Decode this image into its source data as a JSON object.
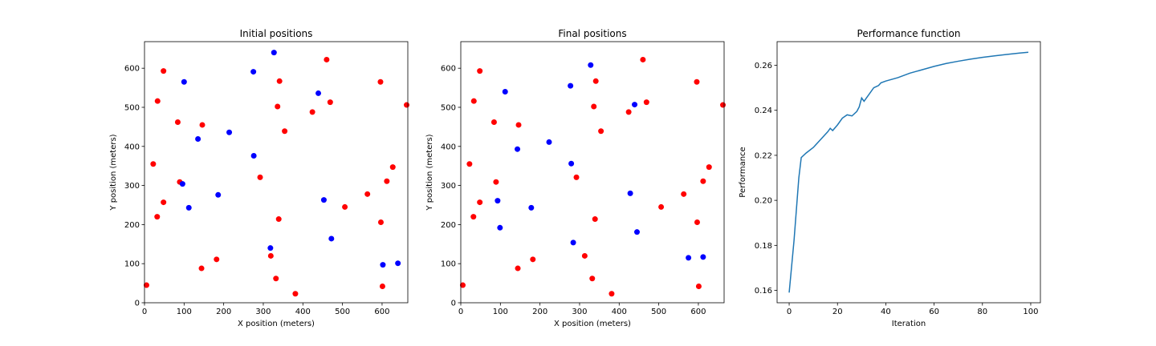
{
  "chart_data": [
    {
      "type": "scatter",
      "title": "Initial positions",
      "xlabel": "X position (meters)",
      "ylabel": "Y position (meters)",
      "xlim": [
        0,
        665
      ],
      "ylim": [
        0,
        668
      ],
      "xticks": [
        0,
        100,
        200,
        300,
        400,
        500,
        600
      ],
      "yticks": [
        0,
        100,
        200,
        300,
        400,
        500,
        600
      ],
      "grid": false,
      "series": [
        {
          "color": "#ff0000",
          "points": [
            [
              5,
              45
            ],
            [
              22,
              355
            ],
            [
              32,
              220
            ],
            [
              33,
              516
            ],
            [
              48,
              593
            ],
            [
              48,
              257
            ],
            [
              84,
              462
            ],
            [
              89,
              309
            ],
            [
              146,
              455
            ],
            [
              144,
              88
            ],
            [
              182,
              111
            ],
            [
              292,
              321
            ],
            [
              319,
              120
            ],
            [
              332,
              62
            ],
            [
              336,
              502
            ],
            [
              339,
              214
            ],
            [
              341,
              567
            ],
            [
              354,
              439
            ],
            [
              381,
              23
            ],
            [
              424,
              488
            ],
            [
              460,
              622
            ],
            [
              469,
              513
            ],
            [
              506,
              245
            ],
            [
              563,
              278
            ],
            [
              596,
              565
            ],
            [
              597,
              206
            ],
            [
              601,
              42
            ],
            [
              612,
              311
            ],
            [
              627,
              347
            ],
            [
              662,
              506
            ]
          ]
        },
        {
          "color": "#0000ff",
          "points": [
            [
              96,
              304
            ],
            [
              100,
              565
            ],
            [
              112,
              243
            ],
            [
              135,
              419
            ],
            [
              186,
              276
            ],
            [
              214,
              436
            ],
            [
              275,
              591
            ],
            [
              276,
              376
            ],
            [
              318,
              140
            ],
            [
              327,
              640
            ],
            [
              439,
              536
            ],
            [
              453,
              263
            ],
            [
              472,
              164
            ],
            [
              602,
              97
            ],
            [
              640,
              101
            ]
          ]
        }
      ]
    },
    {
      "type": "scatter",
      "title": "Final positions",
      "xlabel": "X position (meters)",
      "ylabel": "Y position (meters)",
      "xlim": [
        0,
        665
      ],
      "ylim": [
        0,
        668
      ],
      "xticks": [
        0,
        100,
        200,
        300,
        400,
        500,
        600
      ],
      "yticks": [
        0,
        100,
        200,
        300,
        400,
        500,
        600
      ],
      "grid": false,
      "series": [
        {
          "color": "#ff0000",
          "points": [
            [
              5,
              45
            ],
            [
              22,
              355
            ],
            [
              32,
              220
            ],
            [
              33,
              516
            ],
            [
              48,
              593
            ],
            [
              48,
              257
            ],
            [
              84,
              462
            ],
            [
              89,
              309
            ],
            [
              146,
              455
            ],
            [
              144,
              88
            ],
            [
              182,
              111
            ],
            [
              292,
              321
            ],
            [
              313,
              120
            ],
            [
              332,
              62
            ],
            [
              336,
              502
            ],
            [
              339,
              214
            ],
            [
              341,
              567
            ],
            [
              354,
              439
            ],
            [
              381,
              23
            ],
            [
              424,
              488
            ],
            [
              460,
              622
            ],
            [
              469,
              513
            ],
            [
              506,
              245
            ],
            [
              563,
              278
            ],
            [
              596,
              565
            ],
            [
              597,
              206
            ],
            [
              601,
              42
            ],
            [
              612,
              311
            ],
            [
              627,
              347
            ],
            [
              662,
              506
            ]
          ]
        },
        {
          "color": "#0000ff",
          "points": [
            [
              93,
              261
            ],
            [
              99,
              192
            ],
            [
              112,
              540
            ],
            [
              143,
              393
            ],
            [
              178,
              243
            ],
            [
              223,
              411
            ],
            [
              277,
              555
            ],
            [
              279,
              356
            ],
            [
              284,
              154
            ],
            [
              328,
              608
            ],
            [
              428,
              280
            ],
            [
              439,
              507
            ],
            [
              445,
              181
            ],
            [
              575,
              115
            ],
            [
              612,
              117
            ]
          ]
        }
      ]
    },
    {
      "type": "line",
      "title": "Performance function",
      "xlabel": "Iteration",
      "ylabel": "Performance",
      "xlim": [
        -5,
        104
      ],
      "ylim": [
        0.1545,
        0.2705
      ],
      "xticks": [
        0,
        20,
        40,
        60,
        80,
        100
      ],
      "yticks": [
        0.16,
        0.18,
        0.2,
        0.22,
        0.24,
        0.26
      ],
      "ytick_labels": [
        "0.16",
        "0.18",
        "0.20",
        "0.22",
        "0.24",
        "0.26"
      ],
      "grid": false,
      "series": [
        {
          "color": "#1f77b4",
          "x": [
            0,
            2,
            4,
            5,
            7,
            10,
            13,
            16,
            17,
            18,
            20,
            22,
            24,
            26,
            28,
            29,
            30,
            31,
            33,
            35,
            36,
            37,
            38,
            40,
            45,
            50,
            55,
            60,
            65,
            70,
            75,
            80,
            85,
            90,
            95,
            99
          ],
          "y": [
            0.159,
            0.182,
            0.21,
            0.219,
            0.221,
            0.2235,
            0.227,
            0.2305,
            0.232,
            0.231,
            0.2335,
            0.2365,
            0.238,
            0.2375,
            0.2395,
            0.2415,
            0.2455,
            0.244,
            0.247,
            0.25,
            0.2505,
            0.251,
            0.2522,
            0.253,
            0.2545,
            0.2565,
            0.258,
            0.2595,
            0.2608,
            0.2618,
            0.2627,
            0.2635,
            0.2642,
            0.2648,
            0.2654,
            0.2658
          ]
        }
      ]
    }
  ]
}
